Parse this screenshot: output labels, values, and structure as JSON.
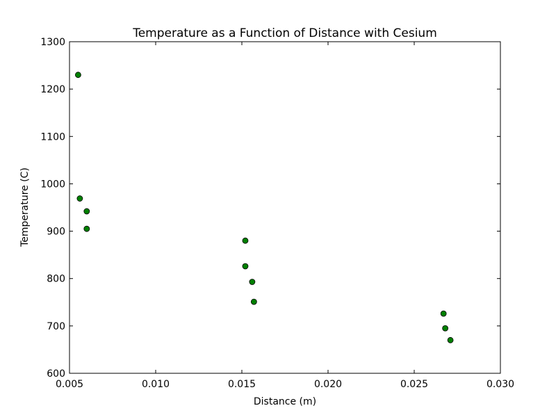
{
  "chart_data": {
    "type": "scatter",
    "title": "Temperature as a Function of Distance with Cesium",
    "xlabel": "Distance (m)",
    "ylabel": "Temperature (C)",
    "xlim": [
      0.005,
      0.03
    ],
    "ylim": [
      600,
      1300
    ],
    "x_ticks": [
      "0.005",
      "0.010",
      "0.015",
      "0.020",
      "0.025",
      "0.030"
    ],
    "y_ticks": [
      "600",
      "700",
      "800",
      "900",
      "1000",
      "1100",
      "1200",
      "1300"
    ],
    "grid": false,
    "marker_color": "#008000",
    "marker_edge": "#000000",
    "series": [
      {
        "points": [
          {
            "x": 0.0055,
            "y": 1230
          },
          {
            "x": 0.0056,
            "y": 969
          },
          {
            "x": 0.006,
            "y": 942
          },
          {
            "x": 0.006,
            "y": 905
          },
          {
            "x": 0.0152,
            "y": 880
          },
          {
            "x": 0.0152,
            "y": 826
          },
          {
            "x": 0.0156,
            "y": 793
          },
          {
            "x": 0.0157,
            "y": 751
          },
          {
            "x": 0.0267,
            "y": 726
          },
          {
            "x": 0.0268,
            "y": 695
          },
          {
            "x": 0.0271,
            "y": 670
          }
        ]
      }
    ]
  }
}
